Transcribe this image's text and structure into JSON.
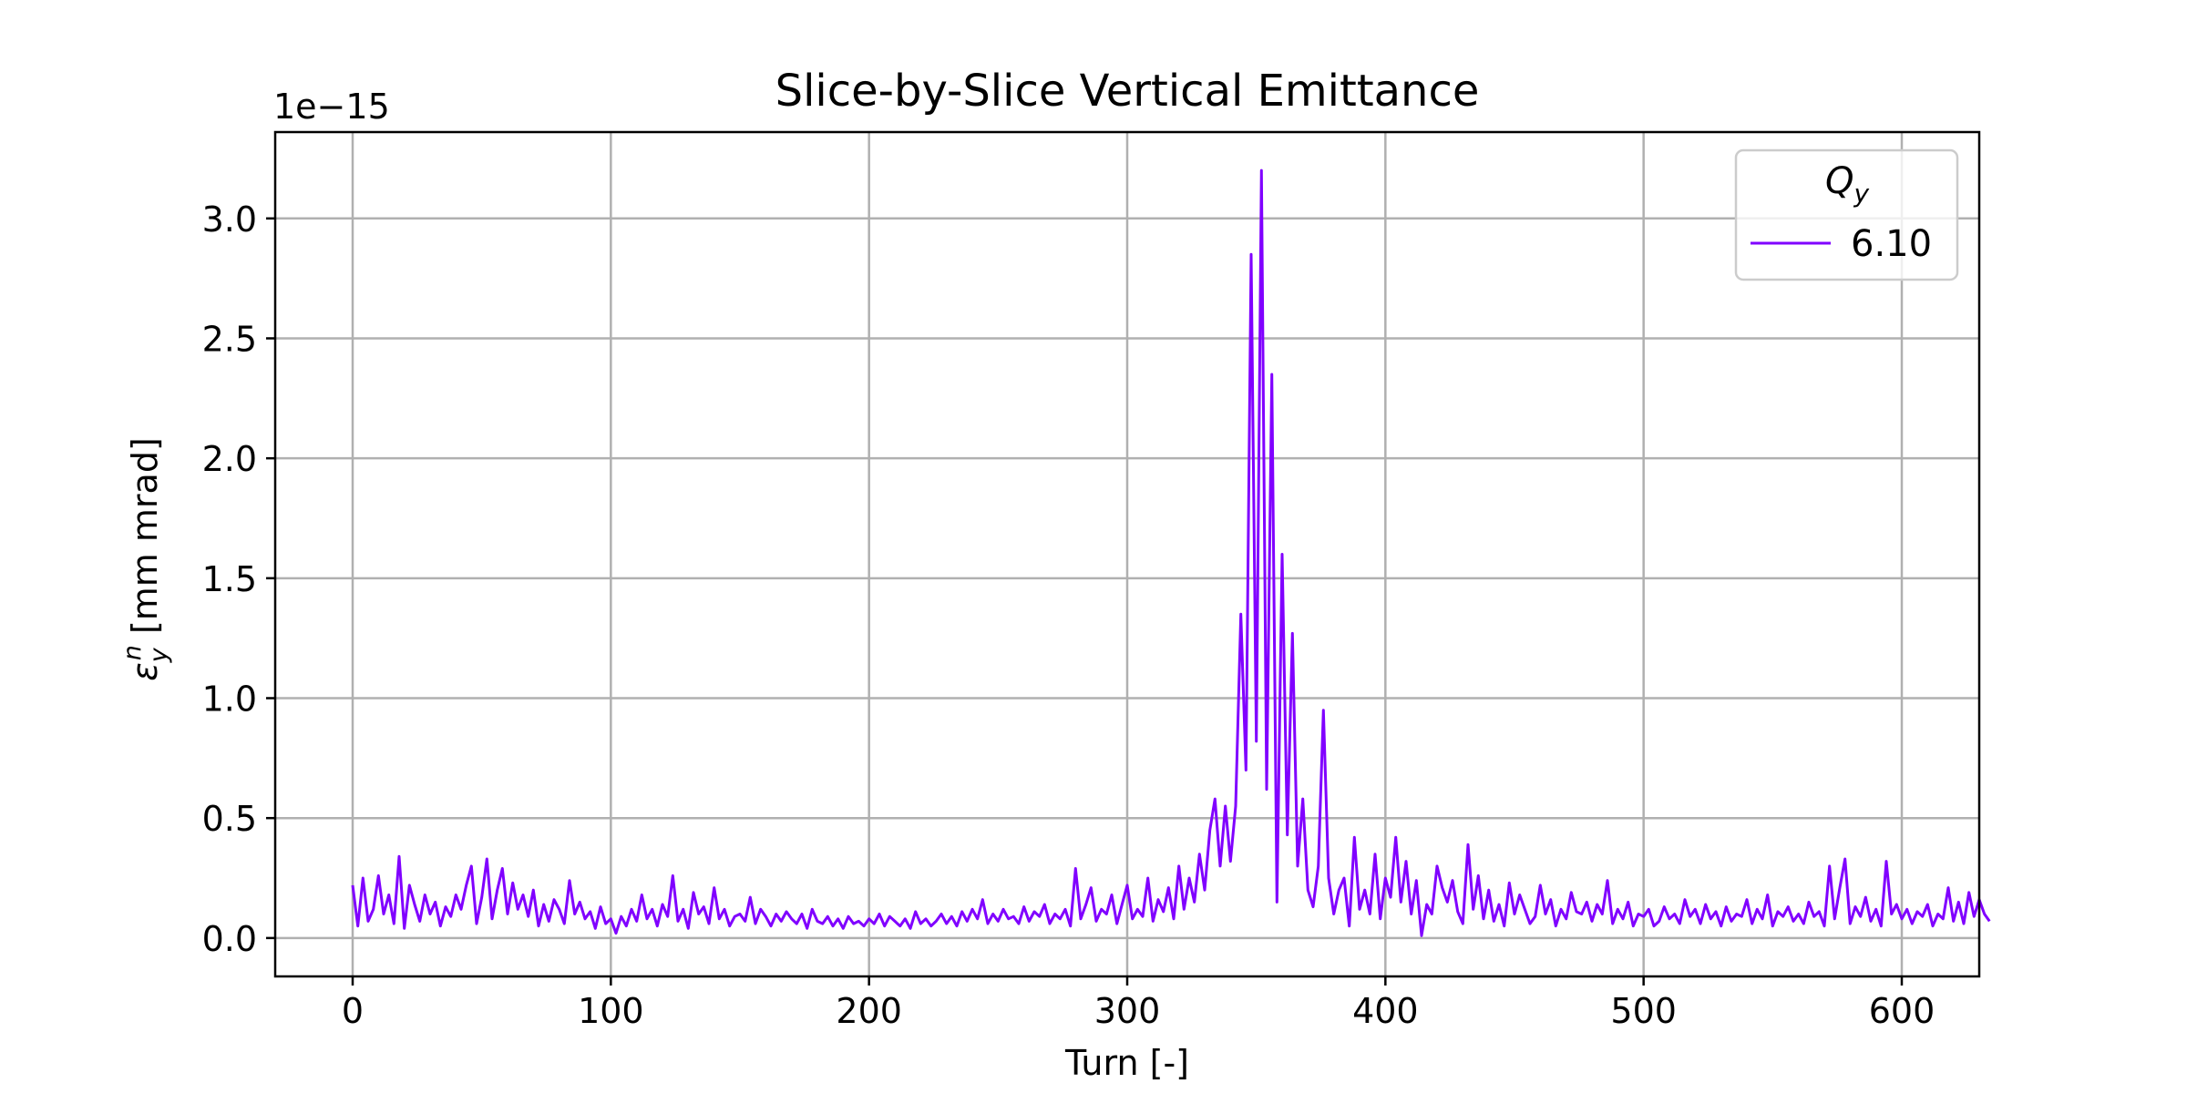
{
  "chart_data": {
    "type": "line",
    "title": "Slice-by-Slice Vertical Emittance",
    "xlabel": "Turn [-]",
    "ylabel_symbol": "ε",
    "ylabel_sub": "y",
    "ylabel_sup": "n",
    "ylabel_unit": " [mm mrad]",
    "y_offset_label": "1e−15",
    "xlim": [
      -30,
      630
    ],
    "ylim": [
      -0.16,
      3.36
    ],
    "xticks": [
      0,
      100,
      200,
      300,
      400,
      500,
      600
    ],
    "xtick_labels": [
      "0",
      "100",
      "200",
      "300",
      "400",
      "500",
      "600"
    ],
    "yticks": [
      0.0,
      0.5,
      1.0,
      1.5,
      2.0,
      2.5,
      3.0
    ],
    "ytick_labels": [
      "0.0",
      "0.5",
      "1.0",
      "1.5",
      "2.0",
      "2.5",
      "3.0"
    ],
    "grid": true,
    "legend": {
      "placement": "top-right",
      "title_symbol": "Q",
      "title_sub": "y"
    },
    "series": [
      {
        "name": "6.10",
        "color": "#8000ff",
        "x_start": 0,
        "x_step": 2,
        "values": [
          0.22,
          0.05,
          0.25,
          0.07,
          0.12,
          0.26,
          0.1,
          0.18,
          0.06,
          0.34,
          0.04,
          0.22,
          0.14,
          0.07,
          0.18,
          0.1,
          0.15,
          0.05,
          0.13,
          0.09,
          0.18,
          0.12,
          0.22,
          0.3,
          0.06,
          0.17,
          0.33,
          0.08,
          0.2,
          0.29,
          0.1,
          0.23,
          0.12,
          0.18,
          0.09,
          0.2,
          0.05,
          0.14,
          0.07,
          0.16,
          0.12,
          0.06,
          0.24,
          0.1,
          0.15,
          0.08,
          0.11,
          0.04,
          0.13,
          0.06,
          0.08,
          0.02,
          0.09,
          0.05,
          0.12,
          0.07,
          0.18,
          0.08,
          0.12,
          0.05,
          0.14,
          0.09,
          0.26,
          0.07,
          0.12,
          0.04,
          0.19,
          0.1,
          0.13,
          0.06,
          0.21,
          0.08,
          0.12,
          0.05,
          0.09,
          0.1,
          0.07,
          0.17,
          0.06,
          0.12,
          0.09,
          0.05,
          0.1,
          0.07,
          0.11,
          0.08,
          0.06,
          0.1,
          0.04,
          0.12,
          0.07,
          0.06,
          0.09,
          0.05,
          0.08,
          0.04,
          0.09,
          0.06,
          0.07,
          0.05,
          0.08,
          0.06,
          0.1,
          0.05,
          0.09,
          0.07,
          0.05,
          0.08,
          0.04,
          0.11,
          0.06,
          0.08,
          0.05,
          0.07,
          0.1,
          0.06,
          0.09,
          0.05,
          0.11,
          0.07,
          0.12,
          0.08,
          0.16,
          0.06,
          0.1,
          0.07,
          0.12,
          0.08,
          0.09,
          0.06,
          0.13,
          0.07,
          0.11,
          0.09,
          0.14,
          0.06,
          0.1,
          0.08,
          0.12,
          0.05,
          0.29,
          0.08,
          0.14,
          0.21,
          0.07,
          0.12,
          0.1,
          0.18,
          0.06,
          0.14,
          0.22,
          0.08,
          0.12,
          0.09,
          0.25,
          0.07,
          0.16,
          0.11,
          0.21,
          0.08,
          0.3,
          0.12,
          0.25,
          0.15,
          0.35,
          0.2,
          0.45,
          0.58,
          0.3,
          0.55,
          0.32,
          0.55,
          1.35,
          0.7,
          2.85,
          0.82,
          3.2,
          0.62,
          2.35,
          0.15,
          1.6,
          0.43,
          1.27,
          0.3,
          0.58,
          0.2,
          0.13,
          0.3,
          0.95,
          0.25,
          0.1,
          0.2,
          0.25,
          0.05,
          0.42,
          0.12,
          0.2,
          0.1,
          0.35,
          0.08,
          0.25,
          0.17,
          0.42,
          0.15,
          0.32,
          0.1,
          0.24,
          0.01,
          0.14,
          0.1,
          0.3,
          0.21,
          0.15,
          0.24,
          0.11,
          0.06,
          0.39,
          0.12,
          0.26,
          0.08,
          0.2,
          0.07,
          0.14,
          0.05,
          0.23,
          0.1,
          0.18,
          0.12,
          0.06,
          0.09,
          0.22,
          0.1,
          0.16,
          0.05,
          0.12,
          0.08,
          0.19,
          0.11,
          0.1,
          0.15,
          0.07,
          0.14,
          0.1,
          0.24,
          0.06,
          0.12,
          0.08,
          0.15,
          0.05,
          0.1,
          0.09,
          0.12,
          0.05,
          0.07,
          0.13,
          0.08,
          0.1,
          0.06,
          0.16,
          0.09,
          0.12,
          0.06,
          0.14,
          0.08,
          0.11,
          0.05,
          0.13,
          0.07,
          0.1,
          0.09,
          0.16,
          0.06,
          0.12,
          0.08,
          0.18,
          0.05,
          0.11,
          0.09,
          0.13,
          0.07,
          0.1,
          0.06,
          0.15,
          0.09,
          0.11,
          0.05,
          0.3,
          0.08,
          0.21,
          0.33,
          0.06,
          0.13,
          0.09,
          0.17,
          0.07,
          0.12,
          0.05,
          0.32,
          0.1,
          0.14,
          0.08,
          0.12,
          0.06,
          0.11,
          0.09,
          0.14,
          0.05,
          0.1,
          0.08,
          0.21,
          0.07,
          0.15,
          0.06,
          0.19,
          0.09,
          0.16,
          0.1,
          0.07
        ]
      }
    ]
  }
}
